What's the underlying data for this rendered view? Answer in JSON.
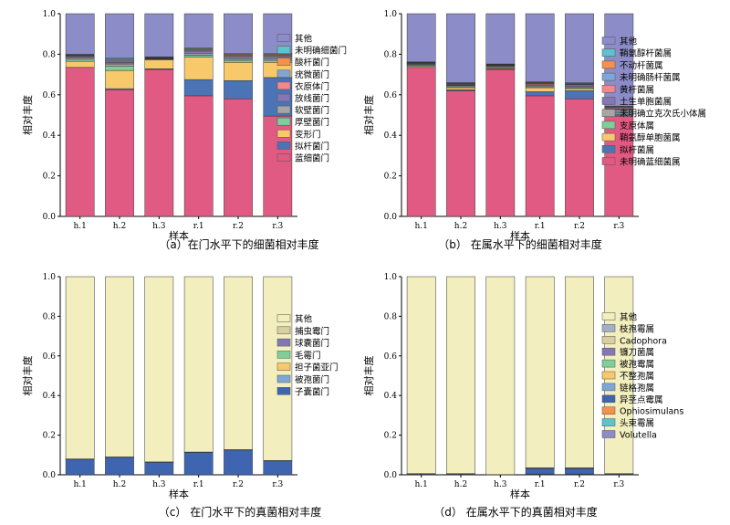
{
  "chart_data": [
    {
      "type": "bar",
      "stacked": true,
      "caption": "（a）在门水平下的细菌相对丰度",
      "xlabel": "样本",
      "ylabel": "相对丰度",
      "ylim": [
        0,
        1.0
      ],
      "yticks": [
        "0.0",
        "0.2",
        "0.4",
        "0.6",
        "0.8",
        "1.0"
      ],
      "categories": [
        "h.1",
        "h.2",
        "h.3",
        "r.1",
        "r.2",
        "r.3"
      ],
      "legend_position": "right",
      "series": [
        {
          "name": "蓝细菌门",
          "color": "#e05a83",
          "values": [
            0.735,
            0.625,
            0.725,
            0.595,
            0.58,
            0.495
          ]
        },
        {
          "name": "拟杆菌门",
          "color": "#4a74b5",
          "values": [
            0.0,
            0.005,
            0.003,
            0.08,
            0.09,
            0.19
          ]
        },
        {
          "name": "变形门",
          "color": "#f7c96b",
          "values": [
            0.03,
            0.09,
            0.045,
            0.11,
            0.09,
            0.075
          ]
        },
        {
          "name": "厚壁菌门",
          "color": "#7fcf9a",
          "values": [
            0.01,
            0.02,
            0.002,
            0.01,
            0.01,
            0.01
          ]
        },
        {
          "name": "软壁菌门",
          "color": "#a6a6a6",
          "values": [
            0.008,
            0.012,
            0.002,
            0.01,
            0.008,
            0.008
          ]
        },
        {
          "name": "放线菌门",
          "color": "#8577b3",
          "values": [
            0.005,
            0.008,
            0.002,
            0.007,
            0.007,
            0.007
          ]
        },
        {
          "name": "衣原体门",
          "color": "#f4878a",
          "values": [
            0.003,
            0.005,
            0.002,
            0.005,
            0.005,
            0.005
          ]
        },
        {
          "name": "疣微菌门",
          "color": "#7fa6d6",
          "values": [
            0.003,
            0.005,
            0.002,
            0.005,
            0.005,
            0.005
          ]
        },
        {
          "name": "酸杆菌门",
          "color": "#f5914a",
          "values": [
            0.003,
            0.005,
            0.002,
            0.005,
            0.005,
            0.005
          ]
        },
        {
          "name": "未明确细菌门",
          "color": "#5cc3cf",
          "values": [
            0.003,
            0.005,
            0.002,
            0.005,
            0.005,
            0.005
          ]
        },
        {
          "name": "其他",
          "color": "#8c8cc9",
          "values": [
            0.2,
            0.22,
            0.213,
            0.168,
            0.195,
            0.195
          ]
        }
      ]
    },
    {
      "type": "bar",
      "stacked": true,
      "caption": "（b） 在属水平下的细菌相对丰度",
      "xlabel": "样本",
      "ylabel": "相对丰度",
      "ylim": [
        0,
        1.0
      ],
      "yticks": [
        "0.0",
        "0.2",
        "0.4",
        "0.6",
        "0.8",
        "1.0"
      ],
      "categories": [
        "h.1",
        "h.2",
        "h.3",
        "r.1",
        "r.2",
        "r.3"
      ],
      "legend_position": "right",
      "series": [
        {
          "name": "未明确蓝细菌属",
          "color": "#e05a83",
          "values": [
            0.735,
            0.62,
            0.725,
            0.595,
            0.58,
            0.495
          ]
        },
        {
          "name": "拟杆菌属",
          "color": "#4a74b5",
          "values": [
            0.0,
            0.005,
            0.003,
            0.02,
            0.04,
            0.01
          ]
        },
        {
          "name": "鞘氨醇单胞菌属",
          "color": "#f7c96b",
          "values": [
            0.005,
            0.01,
            0.005,
            0.02,
            0.01,
            0.005
          ]
        },
        {
          "name": "支原体属",
          "color": "#7fcf9a",
          "values": [
            0.005,
            0.005,
            0.003,
            0.005,
            0.005,
            0.005
          ]
        },
        {
          "name": "未明确立克次氏小体属",
          "color": "#a6a6a6",
          "values": [
            0.005,
            0.005,
            0.005,
            0.005,
            0.005,
            0.01
          ]
        },
        {
          "name": "土生单胞菌属",
          "color": "#8577b3",
          "values": [
            0.003,
            0.003,
            0.003,
            0.005,
            0.005,
            0.005
          ]
        },
        {
          "name": "黄杆菌属",
          "color": "#f4878a",
          "values": [
            0.003,
            0.003,
            0.002,
            0.005,
            0.005,
            0.005
          ]
        },
        {
          "name": "未明确肠杆菌属",
          "color": "#7fa6d6",
          "values": [
            0.002,
            0.003,
            0.002,
            0.003,
            0.003,
            0.003
          ]
        },
        {
          "name": "不动杆菌属",
          "color": "#f5914a",
          "values": [
            0.002,
            0.003,
            0.002,
            0.003,
            0.003,
            0.003
          ]
        },
        {
          "name": "鞘氨醇杆菌属",
          "color": "#5cc3cf",
          "values": [
            0.002,
            0.003,
            0.002,
            0.003,
            0.003,
            0.003
          ]
        },
        {
          "name": "其他",
          "color": "#8c8cc9",
          "values": [
            0.238,
            0.34,
            0.248,
            0.336,
            0.341,
            0.456
          ]
        }
      ]
    },
    {
      "type": "bar",
      "stacked": true,
      "caption": "（c） 在门水平下的真菌相对丰度",
      "xlabel": "样本",
      "ylabel": "相对丰度",
      "ylim": [
        0,
        1.0
      ],
      "yticks": [
        "0.0",
        "0.2",
        "0.4",
        "0.6",
        "0.8",
        "1.0"
      ],
      "categories": [
        "h.1",
        "h.2",
        "h.3",
        "r.1",
        "r.2",
        "r.3"
      ],
      "legend_position": "right",
      "series": [
        {
          "name": "子囊菌门",
          "color": "#3f64b0",
          "values": [
            0.078,
            0.088,
            0.063,
            0.113,
            0.125,
            0.07
          ]
        },
        {
          "name": "被孢菌门",
          "color": "#7fa6d6",
          "values": [
            0.001,
            0.001,
            0.001,
            0.001,
            0.001,
            0.001
          ]
        },
        {
          "name": "担子菌亚门",
          "color": "#f7c96b",
          "values": [
            0.001,
            0.001,
            0.001,
            0.001,
            0.001,
            0.001
          ]
        },
        {
          "name": "毛霉门",
          "color": "#7fcf9a",
          "values": [
            0.0,
            0.0,
            0.0,
            0.0,
            0.0,
            0.0
          ]
        },
        {
          "name": "球囊菌门",
          "color": "#8577b3",
          "values": [
            0.0,
            0.0,
            0.0,
            0.0,
            0.0,
            0.0
          ]
        },
        {
          "name": "捕虫霉门",
          "color": "#d9cfa0",
          "values": [
            0.0,
            0.0,
            0.0,
            0.0,
            0.0,
            0.0
          ]
        },
        {
          "name": "其他",
          "color": "#f2eebd",
          "values": [
            0.92,
            0.91,
            0.935,
            0.885,
            0.873,
            0.928
          ]
        }
      ]
    },
    {
      "type": "bar",
      "stacked": true,
      "caption": "（d） 在属水平下的真菌相对丰度",
      "xlabel": "样本",
      "ylabel": "相对丰度",
      "ylim": [
        0,
        1.0
      ],
      "yticks": [
        "0.0",
        "0.2",
        "0.4",
        "0.6",
        "0.8",
        "1.0"
      ],
      "categories": [
        "h.1",
        "h.2",
        "h.3",
        "r.1",
        "r.2",
        "r.3"
      ],
      "legend_position": "right",
      "series": [
        {
          "name": "Volutella",
          "color": "#8c8cc9",
          "values": [
            0.001,
            0.001,
            0.0,
            0.002,
            0.002,
            0.001
          ]
        },
        {
          "name": "头束霉属",
          "color": "#5cc3cf",
          "values": [
            0.001,
            0.001,
            0.0,
            0.001,
            0.001,
            0.001
          ]
        },
        {
          "name": "Ophiosimulans",
          "color": "#f5914a",
          "values": [
            0.0,
            0.0,
            0.0,
            0.001,
            0.001,
            0.0
          ]
        },
        {
          "name": "异茎点霉属",
          "color": "#3f64b0",
          "values": [
            0.003,
            0.003,
            0.001,
            0.028,
            0.028,
            0.003
          ]
        },
        {
          "name": "链格孢属",
          "color": "#7fa6d6",
          "values": [
            0.001,
            0.001,
            0.0,
            0.001,
            0.001,
            0.001
          ]
        },
        {
          "name": "不整孢属",
          "color": "#f7c96b",
          "values": [
            0.0,
            0.0,
            0.0,
            0.001,
            0.001,
            0.0
          ]
        },
        {
          "name": "被孢霉属",
          "color": "#7fcf9a",
          "values": [
            0.0,
            0.0,
            0.0,
            0.0,
            0.0,
            0.0
          ]
        },
        {
          "name": "镰刀菌属",
          "color": "#8577b3",
          "values": [
            0.0,
            0.0,
            0.0,
            0.001,
            0.001,
            0.0
          ]
        },
        {
          "name": "Cadophora",
          "color": "#d9cfa0",
          "values": [
            0.0,
            0.0,
            0.0,
            0.0,
            0.0,
            0.0
          ]
        },
        {
          "name": "枝孢霉属",
          "color": "#9fb0c8",
          "values": [
            0.0,
            0.0,
            0.0,
            0.0,
            0.0,
            0.0
          ]
        },
        {
          "name": "其他",
          "color": "#f2eebd",
          "values": [
            0.994,
            0.994,
            0.999,
            0.965,
            0.965,
            0.994
          ]
        }
      ]
    }
  ]
}
